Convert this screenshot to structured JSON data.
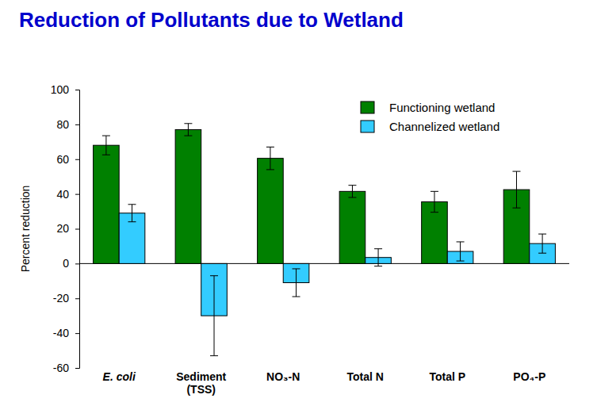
{
  "chart_data": {
    "type": "bar",
    "title": "Reduction of Pollutants due to Wetland",
    "y_label": "Percent reduction",
    "categories": [
      "E. coli",
      "Sediment (TSS)",
      "NO₃-N",
      "Total N",
      "Total P",
      "PO₄-P"
    ],
    "series": [
      {
        "name": "Functioning wetland",
        "color": "#008000",
        "values": [
          68,
          77,
          60.5,
          41.5,
          35.5,
          42.5
        ],
        "errors": [
          5.5,
          3.5,
          6.5,
          3.5,
          6,
          10.5
        ]
      },
      {
        "name": "Channelized wetland",
        "color": "#33ccff",
        "values": [
          29,
          -30,
          -11,
          3.5,
          7,
          11.5
        ],
        "errors": [
          5,
          23,
          8,
          5,
          5.5,
          5.5
        ]
      }
    ],
    "ylim": [
      -60,
      100
    ],
    "yticks": [
      -60,
      -40,
      -20,
      0,
      20,
      40,
      60,
      80,
      100
    ],
    "legend": "upper right",
    "grid": false
  }
}
